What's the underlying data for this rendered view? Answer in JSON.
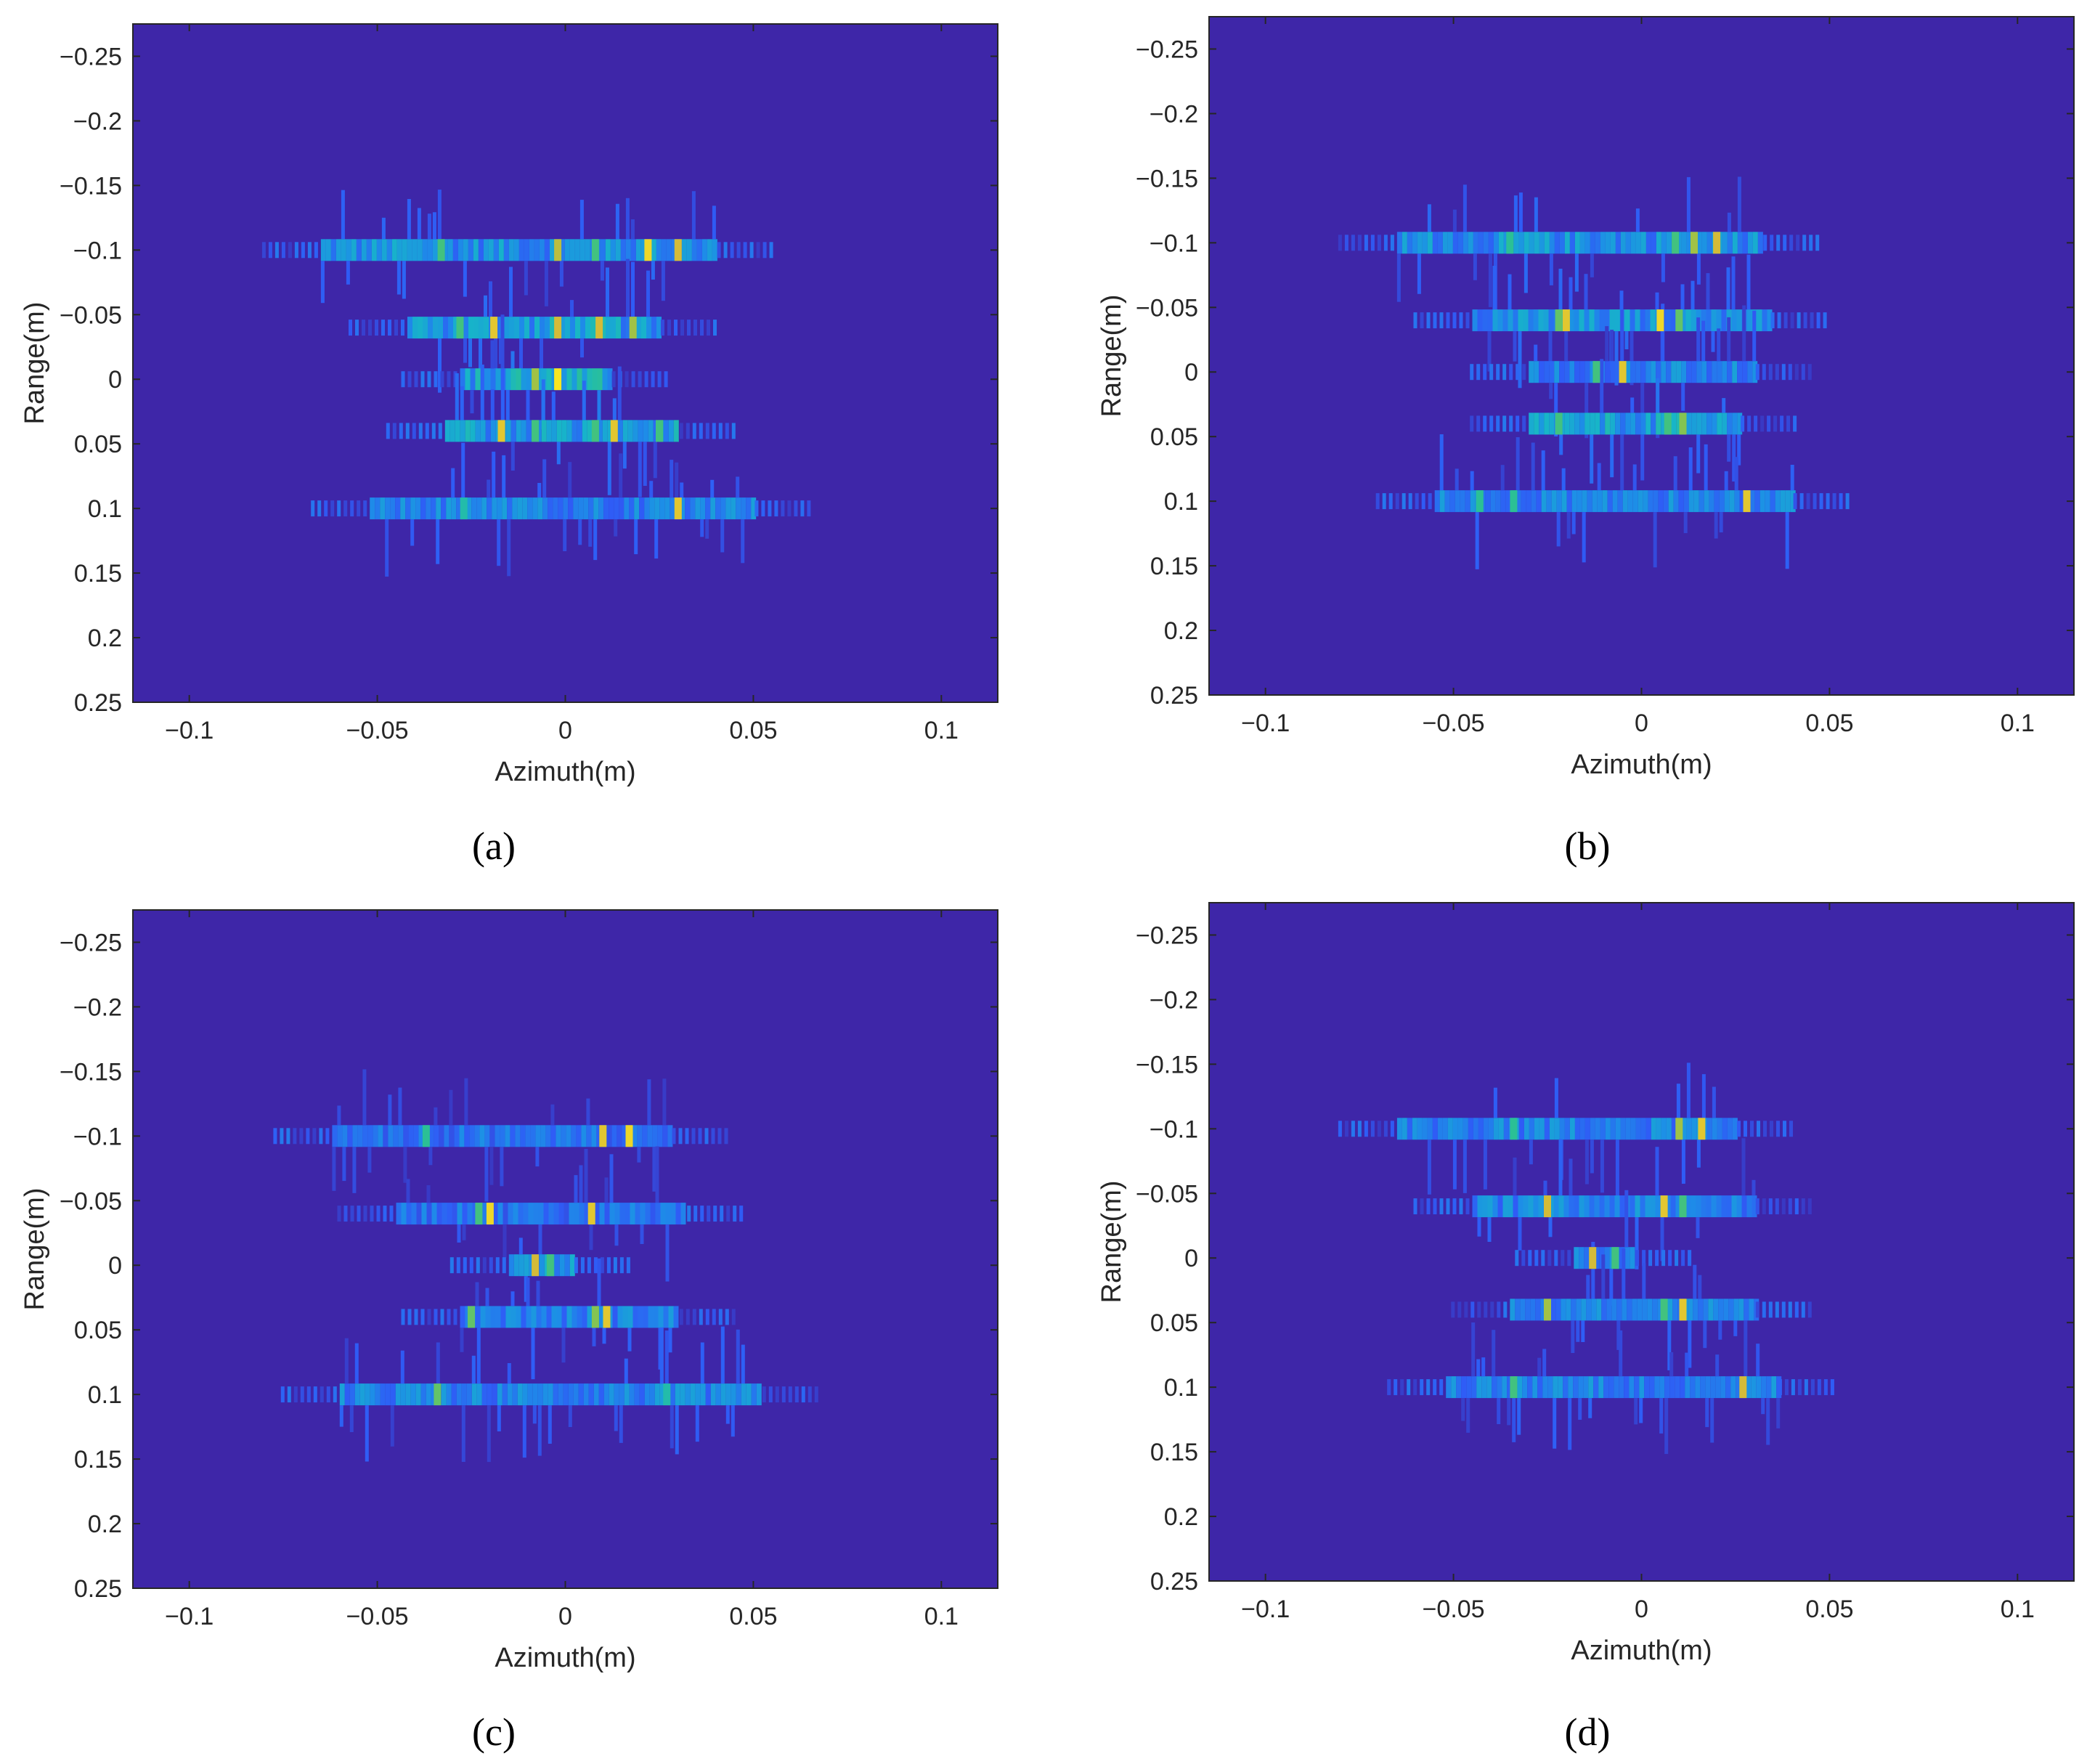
{
  "figure": {
    "colors": {
      "background": "#3e26a8",
      "colormap": [
        "#3e26a8",
        "#2f5cf6",
        "#1d8ee7",
        "#17b5c8",
        "#2fc28c",
        "#8ec44b",
        "#d8ba37",
        "#f9e621"
      ]
    }
  },
  "chart_data": [
    {
      "type": "heatmap",
      "caption": "(a)",
      "title": "",
      "xlabel": "Azimuth(m)",
      "ylabel": "Range(m)",
      "xlim": [
        -0.115,
        0.115
      ],
      "ylim": [
        -0.275,
        0.25
      ],
      "y_reversed": true,
      "xticks": [
        -0.1,
        -0.05,
        0,
        0.05,
        0.1
      ],
      "xtick_labels": [
        "−0.1",
        "−0.05",
        "0",
        "0.05",
        "0.1"
      ],
      "yticks": [
        -0.25,
        -0.2,
        -0.15,
        -0.1,
        -0.05,
        0,
        0.05,
        0.1,
        0.15,
        0.2,
        0.25
      ],
      "ytick_labels": [
        "−0.25",
        "−0.2",
        "−0.15",
        "−0.1",
        "−0.05",
        "0",
        "0.05",
        "0.1",
        "0.15",
        "0.2",
        "0.25"
      ],
      "colormap": "parula",
      "bands": [
        {
          "range": -0.1,
          "x_from": -0.065,
          "x_to": 0.04,
          "level": 0.35
        },
        {
          "range": -0.04,
          "x_from": -0.042,
          "x_to": 0.025,
          "level": 0.4
        },
        {
          "range": 0.0,
          "x_from": -0.028,
          "x_to": 0.012,
          "level": 0.45
        },
        {
          "range": 0.04,
          "x_from": -0.032,
          "x_to": 0.03,
          "level": 0.4
        },
        {
          "range": 0.1,
          "x_from": -0.052,
          "x_to": 0.05,
          "level": 0.3
        }
      ],
      "peaks": [
        {
          "x": -0.033,
          "range": -0.1,
          "value": 0.6
        },
        {
          "x": -0.002,
          "range": -0.1,
          "value": 0.8
        },
        {
          "x": 0.008,
          "range": -0.1,
          "value": 0.6
        },
        {
          "x": 0.022,
          "range": -0.1,
          "value": 0.95
        },
        {
          "x": 0.03,
          "range": -0.1,
          "value": 0.85
        },
        {
          "x": -0.028,
          "range": -0.04,
          "value": 0.6
        },
        {
          "x": -0.019,
          "range": -0.04,
          "value": 0.9
        },
        {
          "x": -0.002,
          "range": -0.04,
          "value": 0.85
        },
        {
          "x": 0.009,
          "range": -0.04,
          "value": 0.85
        },
        {
          "x": 0.018,
          "range": -0.04,
          "value": 0.75
        },
        {
          "x": -0.008,
          "range": 0.0,
          "value": 0.75
        },
        {
          "x": -0.002,
          "range": 0.0,
          "value": 1.0
        },
        {
          "x": -0.017,
          "range": 0.04,
          "value": 0.9
        },
        {
          "x": -0.008,
          "range": 0.04,
          "value": 0.6
        },
        {
          "x": 0.008,
          "range": 0.04,
          "value": 0.6
        },
        {
          "x": 0.013,
          "range": 0.04,
          "value": 0.9
        },
        {
          "x": 0.025,
          "range": 0.04,
          "value": 0.6
        },
        {
          "x": -0.027,
          "range": 0.1,
          "value": 0.5
        },
        {
          "x": 0.03,
          "range": 0.1,
          "value": 0.9
        }
      ]
    },
    {
      "type": "heatmap",
      "caption": "(b)",
      "title": "",
      "xlabel": "Azimuth(m)",
      "ylabel": "Range(m)",
      "xlim": [
        -0.115,
        0.115
      ],
      "ylim": [
        -0.275,
        0.25
      ],
      "y_reversed": true,
      "xticks": [
        -0.1,
        -0.05,
        0,
        0.05,
        0.1
      ],
      "xtick_labels": [
        "−0.1",
        "−0.05",
        "0",
        "0.05",
        "0.1"
      ],
      "yticks": [
        -0.25,
        -0.2,
        -0.15,
        -0.1,
        -0.05,
        0,
        0.05,
        0.1,
        0.15,
        0.2,
        0.25
      ],
      "ytick_labels": [
        "−0.25",
        "−0.2",
        "−0.15",
        "−0.1",
        "−0.05",
        "0",
        "0.05",
        "0.1",
        "0.15",
        "0.2",
        "0.25"
      ],
      "colormap": "parula",
      "bands": [
        {
          "range": -0.1,
          "x_from": -0.065,
          "x_to": 0.032,
          "level": 0.35
        },
        {
          "range": -0.04,
          "x_from": -0.045,
          "x_to": 0.034,
          "level": 0.35
        },
        {
          "range": 0.0,
          "x_from": -0.03,
          "x_to": 0.03,
          "level": 0.3
        },
        {
          "range": 0.04,
          "x_from": -0.03,
          "x_to": 0.026,
          "level": 0.4
        },
        {
          "range": 0.1,
          "x_from": -0.055,
          "x_to": 0.04,
          "level": 0.3
        }
      ],
      "peaks": [
        {
          "x": -0.035,
          "range": -0.1,
          "value": 0.55
        },
        {
          "x": 0.009,
          "range": -0.1,
          "value": 0.6
        },
        {
          "x": 0.014,
          "range": -0.1,
          "value": 0.75
        },
        {
          "x": 0.02,
          "range": -0.1,
          "value": 0.85
        },
        {
          "x": -0.02,
          "range": -0.04,
          "value": 0.9
        },
        {
          "x": -0.022,
          "range": -0.04,
          "value": 0.65
        },
        {
          "x": 0.005,
          "range": -0.04,
          "value": 0.95
        },
        {
          "x": 0.01,
          "range": -0.04,
          "value": 0.65
        },
        {
          "x": -0.012,
          "range": 0.0,
          "value": 0.6
        },
        {
          "x": -0.005,
          "range": 0.0,
          "value": 0.9
        },
        {
          "x": -0.022,
          "range": 0.04,
          "value": 0.6
        },
        {
          "x": 0.007,
          "range": 0.04,
          "value": 0.6
        },
        {
          "x": 0.011,
          "range": 0.04,
          "value": 0.7
        },
        {
          "x": -0.043,
          "range": 0.1,
          "value": 0.55
        },
        {
          "x": -0.034,
          "range": 0.1,
          "value": 0.55
        },
        {
          "x": 0.028,
          "range": 0.1,
          "value": 0.9
        }
      ]
    },
    {
      "type": "heatmap",
      "caption": "(c)",
      "title": "",
      "xlabel": "Azimuth(m)",
      "ylabel": "Range(m)",
      "xlim": [
        -0.115,
        0.115
      ],
      "ylim": [
        -0.275,
        0.25
      ],
      "y_reversed": true,
      "xticks": [
        -0.1,
        -0.05,
        0,
        0.05,
        0.1
      ],
      "xtick_labels": [
        "−0.1",
        "−0.05",
        "0",
        "0.05",
        "0.1"
      ],
      "yticks": [
        -0.25,
        -0.2,
        -0.15,
        -0.1,
        -0.05,
        0,
        0.05,
        0.1,
        0.15,
        0.2,
        0.25
      ],
      "ytick_labels": [
        "−0.25",
        "−0.2",
        "−0.15",
        "−0.1",
        "−0.05",
        "0",
        "0.05",
        "0.1",
        "0.15",
        "0.2",
        "0.25"
      ],
      "colormap": "parula",
      "bands": [
        {
          "range": -0.1,
          "x_from": -0.062,
          "x_to": 0.028,
          "level": 0.25
        },
        {
          "range": -0.04,
          "x_from": -0.045,
          "x_to": 0.032,
          "level": 0.25
        },
        {
          "range": 0.0,
          "x_from": -0.015,
          "x_to": 0.002,
          "level": 0.4
        },
        {
          "range": 0.04,
          "x_from": -0.028,
          "x_to": 0.03,
          "level": 0.3
        },
        {
          "range": 0.1,
          "x_from": -0.06,
          "x_to": 0.052,
          "level": 0.3
        }
      ],
      "peaks": [
        {
          "x": -0.037,
          "range": -0.1,
          "value": 0.55
        },
        {
          "x": 0.01,
          "range": -0.1,
          "value": 0.9
        },
        {
          "x": 0.017,
          "range": -0.1,
          "value": 0.95
        },
        {
          "x": -0.02,
          "range": -0.04,
          "value": 0.95
        },
        {
          "x": -0.023,
          "range": -0.04,
          "value": 0.6
        },
        {
          "x": 0.007,
          "range": -0.04,
          "value": 0.9
        },
        {
          "x": -0.008,
          "range": 0.0,
          "value": 0.85
        },
        {
          "x": -0.004,
          "range": 0.0,
          "value": 0.6
        },
        {
          "x": -0.025,
          "range": 0.04,
          "value": 0.65
        },
        {
          "x": 0.008,
          "range": 0.04,
          "value": 0.7
        },
        {
          "x": 0.011,
          "range": 0.04,
          "value": 0.9
        },
        {
          "x": -0.034,
          "range": 0.1,
          "value": 0.65
        },
        {
          "x": 0.027,
          "range": 0.1,
          "value": 0.5
        }
      ]
    },
    {
      "type": "heatmap",
      "caption": "(d)",
      "title": "",
      "xlabel": "Azimuth(m)",
      "ylabel": "Range(m)",
      "xlim": [
        -0.115,
        0.115
      ],
      "ylim": [
        -0.275,
        0.25
      ],
      "y_reversed": true,
      "xticks": [
        -0.1,
        -0.05,
        0,
        0.05,
        0.1
      ],
      "xtick_labels": [
        "−0.1",
        "−0.05",
        "0",
        "0.05",
        "0.1"
      ],
      "yticks": [
        -0.25,
        -0.2,
        -0.15,
        -0.1,
        -0.05,
        0,
        0.05,
        0.1,
        0.15,
        0.2,
        0.25
      ],
      "ytick_labels": [
        "−0.25",
        "−0.2",
        "−0.15",
        "−0.1",
        "−0.05",
        "0",
        "0.05",
        "0.1",
        "0.15",
        "0.2",
        "0.25"
      ],
      "colormap": "parula",
      "bands": [
        {
          "range": -0.1,
          "x_from": -0.065,
          "x_to": 0.025,
          "level": 0.3
        },
        {
          "range": -0.04,
          "x_from": -0.045,
          "x_to": 0.03,
          "level": 0.3
        },
        {
          "range": 0.0,
          "x_from": -0.018,
          "x_to": -0.002,
          "level": 0.35
        },
        {
          "range": 0.04,
          "x_from": -0.035,
          "x_to": 0.03,
          "level": 0.3
        },
        {
          "range": 0.1,
          "x_from": -0.052,
          "x_to": 0.036,
          "level": 0.3
        }
      ],
      "peaks": [
        {
          "x": -0.034,
          "range": -0.1,
          "value": 0.55
        },
        {
          "x": 0.01,
          "range": -0.1,
          "value": 0.75
        },
        {
          "x": 0.016,
          "range": -0.1,
          "value": 0.9
        },
        {
          "x": -0.025,
          "range": -0.04,
          "value": 0.85
        },
        {
          "x": 0.006,
          "range": -0.04,
          "value": 0.9
        },
        {
          "x": 0.011,
          "range": -0.04,
          "value": 0.6
        },
        {
          "x": -0.013,
          "range": 0.0,
          "value": 0.85
        },
        {
          "x": -0.007,
          "range": 0.0,
          "value": 0.6
        },
        {
          "x": -0.025,
          "range": 0.04,
          "value": 0.75
        },
        {
          "x": 0.006,
          "range": 0.04,
          "value": 0.6
        },
        {
          "x": 0.011,
          "range": 0.04,
          "value": 0.9
        },
        {
          "x": -0.034,
          "range": 0.1,
          "value": 0.6
        },
        {
          "x": 0.027,
          "range": 0.1,
          "value": 0.85
        }
      ]
    }
  ]
}
